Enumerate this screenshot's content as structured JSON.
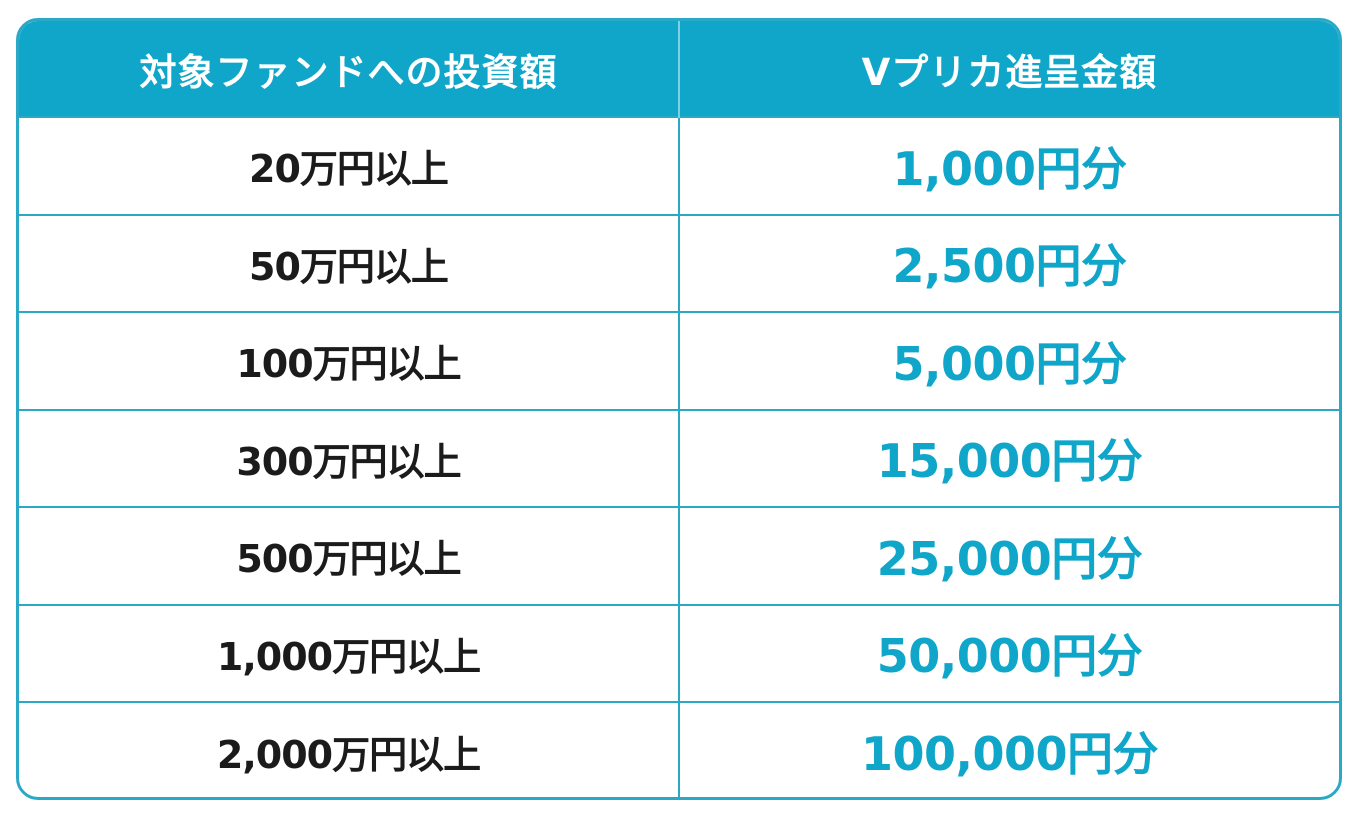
{
  "colors": {
    "header_bg": "#0fa6c9",
    "header_text": "#ffffff",
    "border": "#2aa9c7",
    "invest_text": "#1b1b1b",
    "reward_text": "#0fa6c9"
  },
  "table": {
    "headers": [
      "対象ファンドへの投資額",
      "Vプリカ進呈金額"
    ],
    "rows": [
      {
        "invest": "20万円以上",
        "reward": "1,000円分"
      },
      {
        "invest": "50万円以上",
        "reward": "2,500円分"
      },
      {
        "invest": "100万円以上",
        "reward": "5,000円分"
      },
      {
        "invest": "300万円以上",
        "reward": "15,000円分"
      },
      {
        "invest": "500万円以上",
        "reward": "25,000円分"
      },
      {
        "invest": "1,000万円以上",
        "reward": "50,000円分"
      },
      {
        "invest": "2,000万円以上",
        "reward": "100,000円分"
      }
    ]
  }
}
